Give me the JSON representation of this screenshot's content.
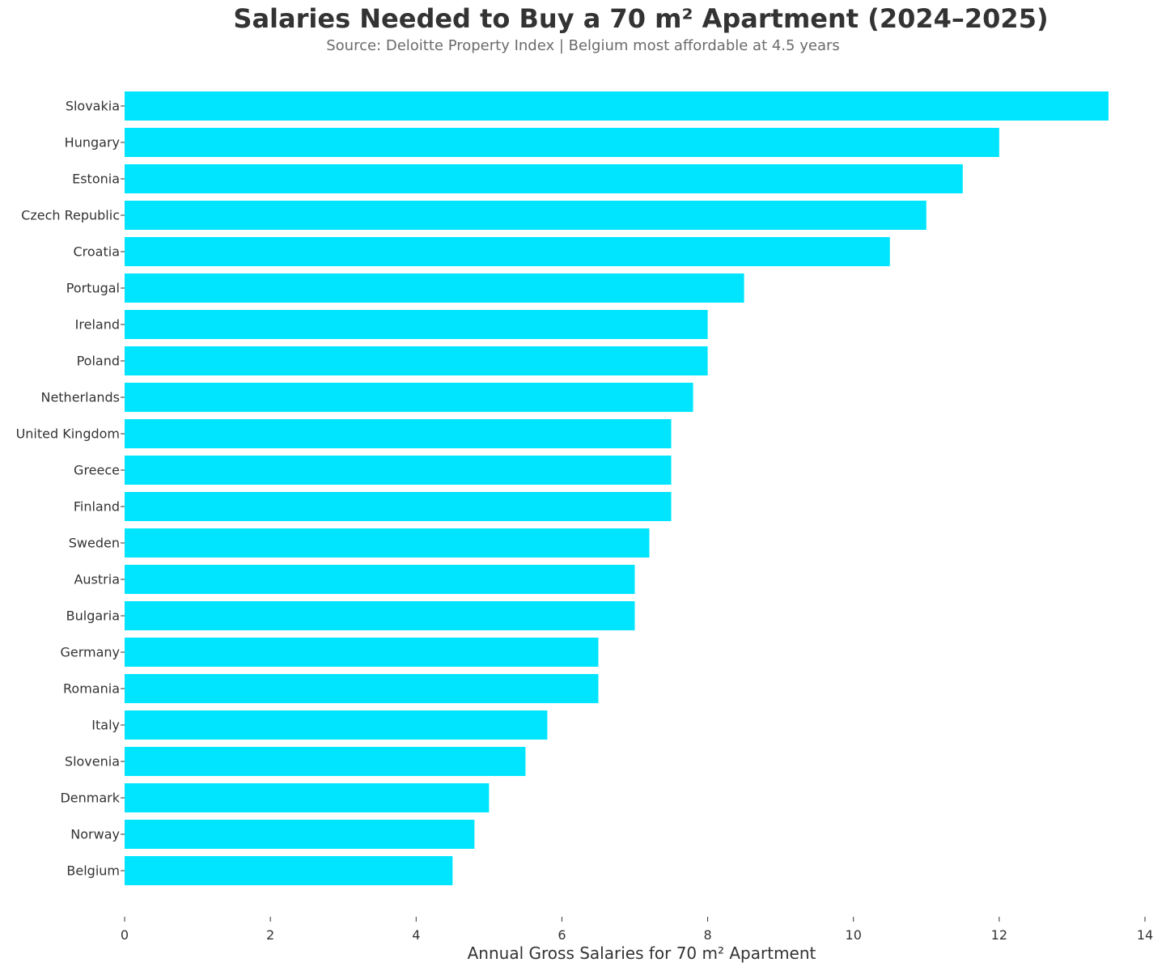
{
  "chart_data": {
    "type": "bar",
    "orientation": "horizontal",
    "title": "Salaries Needed to Buy a 70 m² Apartment (2024–2025)",
    "subtitle": "Source: Deloitte Property Index | Belgium most affordable at 4.5 years",
    "xlabel": "Annual Gross Salaries for 70 m² Apartment",
    "ylabel": "",
    "xlim": [
      0,
      14
    ],
    "x_ticks": [
      "0",
      "2",
      "4",
      "6",
      "8",
      "10",
      "12",
      "14"
    ],
    "grid": false,
    "legend": "none",
    "bar_color": "#00E5FF",
    "text_color": "#333333",
    "subtitle_color": "#6b6b6b",
    "categories": [
      "Slovakia",
      "Hungary",
      "Estonia",
      "Czech Republic",
      "Croatia",
      "Portugal",
      "Ireland",
      "Poland",
      "Netherlands",
      "United Kingdom",
      "Greece",
      "Finland",
      "Sweden",
      "Austria",
      "Bulgaria",
      "Germany",
      "Romania",
      "Italy",
      "Slovenia",
      "Denmark",
      "Norway",
      "Belgium"
    ],
    "values": [
      13.5,
      12.0,
      11.5,
      11.0,
      10.5,
      8.5,
      8.0,
      8.0,
      7.8,
      7.5,
      7.5,
      7.5,
      7.2,
      7.0,
      7.0,
      6.5,
      6.5,
      5.8,
      5.5,
      5.0,
      4.8,
      4.5
    ]
  }
}
